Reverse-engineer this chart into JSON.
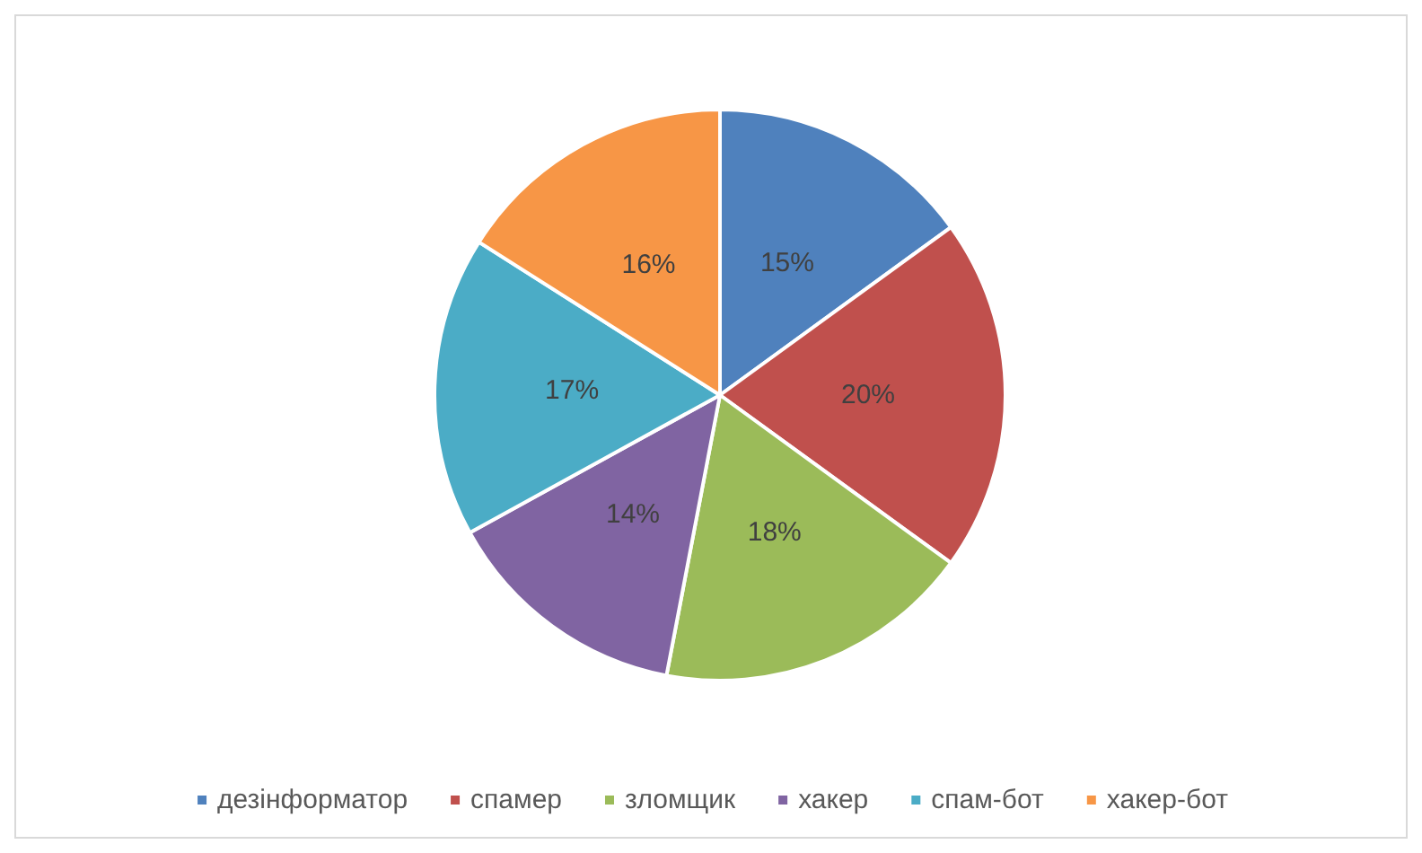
{
  "chart_data": {
    "type": "pie",
    "categories": [
      "дезінформатор",
      "спамер",
      "зломщик",
      "хакер",
      "спам-бот",
      "хакер-бот"
    ],
    "values": [
      15,
      20,
      18,
      14,
      17,
      16
    ],
    "value_labels": [
      "15%",
      "20%",
      "18%",
      "14%",
      "17%",
      "16%"
    ],
    "colors": [
      "#4f81bd",
      "#c0504d",
      "#9bbb59",
      "#8064a2",
      "#4bacc6",
      "#f79646"
    ],
    "legend": "bottom"
  }
}
